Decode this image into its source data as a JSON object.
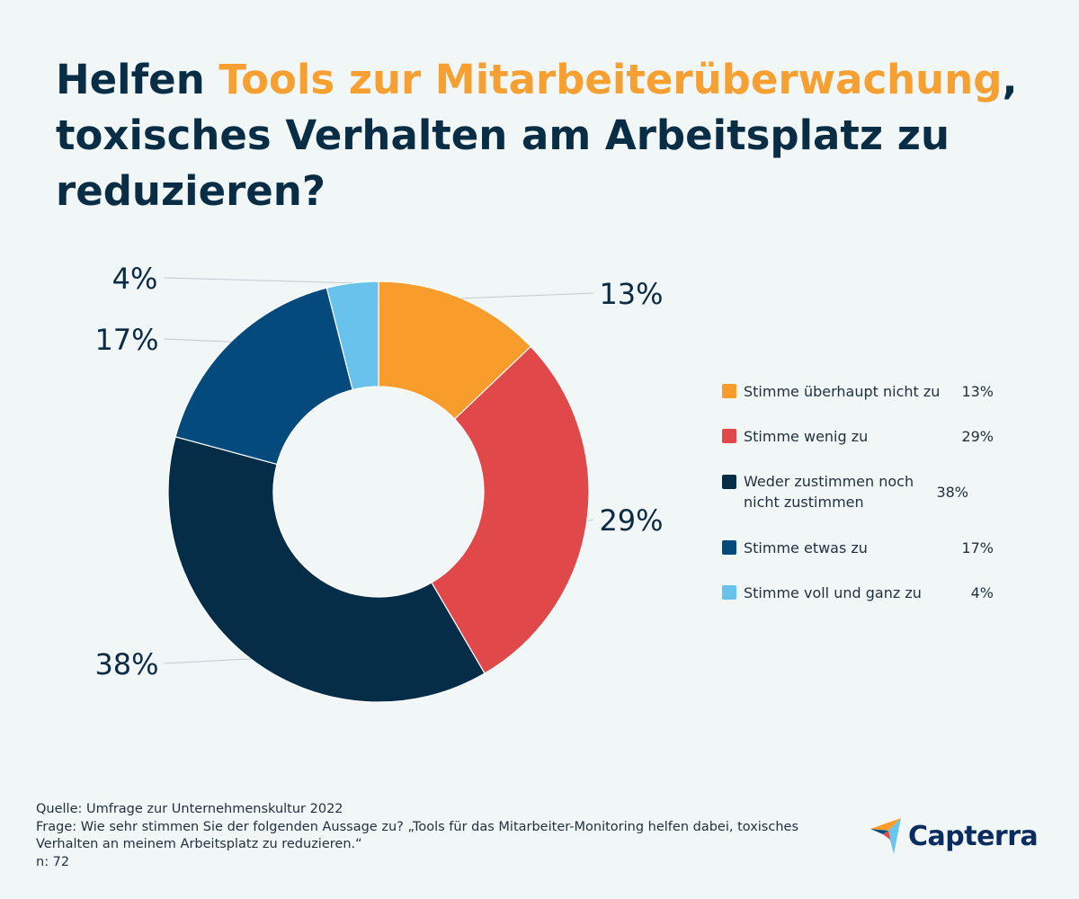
{
  "title": {
    "part1": "Helfen ",
    "highlight": "Tools zur Mitarbeiterüberwachung",
    "part2": ",",
    "part3": "toxisches Verhalten am Arbeitsplatz zu",
    "part4": "reduzieren?"
  },
  "colors": {
    "background": "#f1f6f7",
    "title": "#092d45",
    "highlight": "#f7a032"
  },
  "chart_data": {
    "type": "pie",
    "variant": "donut",
    "slices": [
      {
        "label": "Stimme überhaupt nicht zu",
        "value": 13,
        "display": "13%",
        "color": "#f89c2c"
      },
      {
        "label": "Stimme wenig zu",
        "value": 29,
        "display": "29%",
        "color": "#e0484a"
      },
      {
        "label": "Weder zustimmen noch nicht zustimmen",
        "value": 38,
        "display": "38%",
        "color": "#052d47"
      },
      {
        "label": "Stimme etwas zu",
        "value": 17,
        "display": "17%",
        "color": "#054a7c"
      },
      {
        "label": "Stimme voll und ganz zu",
        "value": 4,
        "display": "4%",
        "color": "#69c2ec"
      }
    ],
    "legend_position": "right"
  },
  "legend": [
    {
      "label": "Stimme überhaupt nicht zu",
      "value": "13%",
      "color": "#f89c2c"
    },
    {
      "label": "Stimme wenig zu",
      "value": "29%",
      "color": "#e0484a"
    },
    {
      "label": "Weder zustimmen noch nicht zustimmen",
      "value": "38%",
      "color": "#052d47"
    },
    {
      "label": "Stimme etwas zu",
      "value": "17%",
      "color": "#054a7c"
    },
    {
      "label": "Stimme voll und ganz zu",
      "value": "4%",
      "color": "#69c2ec"
    }
  ],
  "footer": {
    "source": "Quelle: Umfrage zur Unternehmenskultur 2022",
    "question_line1": "Frage: Wie sehr stimmen Sie der folgenden Aussage zu? „Tools für das Mitarbeiter-Monitoring helfen dabei, toxisches",
    "question_line2": "Verhalten an meinem Arbeitsplatz zu reduzieren.“",
    "sample": "n: 72"
  },
  "logo": {
    "text": "Capterra",
    "icon": "capterra-arrow-icon"
  }
}
